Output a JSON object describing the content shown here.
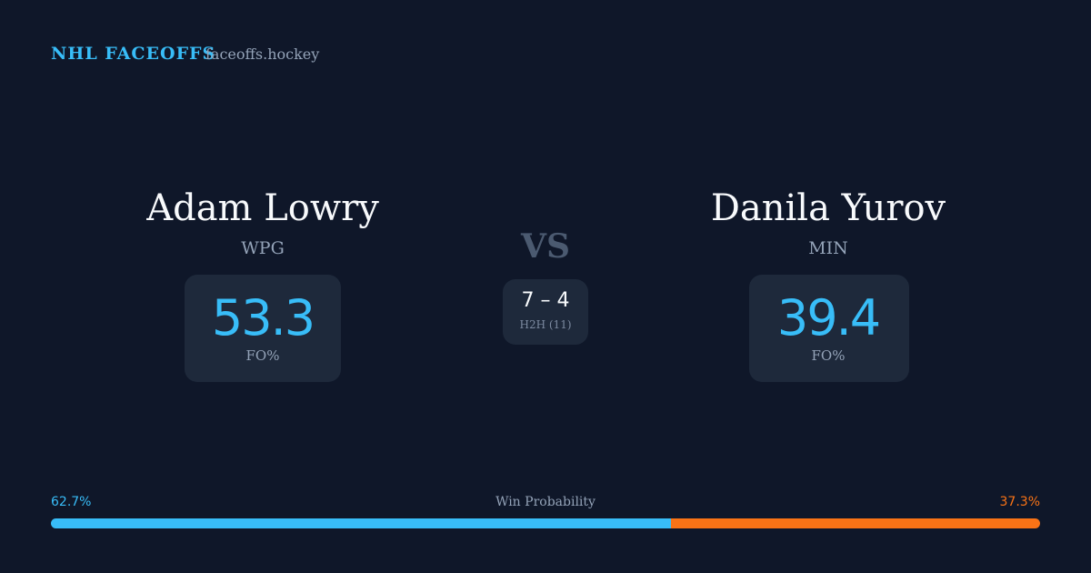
{
  "header": {
    "brand": "NHL FACEOFFS",
    "site": "faceoffs.hockey"
  },
  "players": [
    {
      "name": "Adam Lowry",
      "team": "WPG",
      "fo_pct": 53.3,
      "fo_label": "FO%"
    },
    {
      "name": "Danila Yurov",
      "team": "MIN",
      "fo_pct": 39.4,
      "fo_label": "FO%"
    }
  ],
  "versus": {
    "label": "VS",
    "score": "7 – 4",
    "note": "H2H (11)"
  },
  "win_probability": {
    "title": "Win Probability",
    "home": {
      "value": 62.7,
      "label": "62.7%",
      "color": "#38bdf8"
    },
    "away": {
      "value": 37.3,
      "label": "37.3%",
      "color": "#f97316"
    }
  }
}
